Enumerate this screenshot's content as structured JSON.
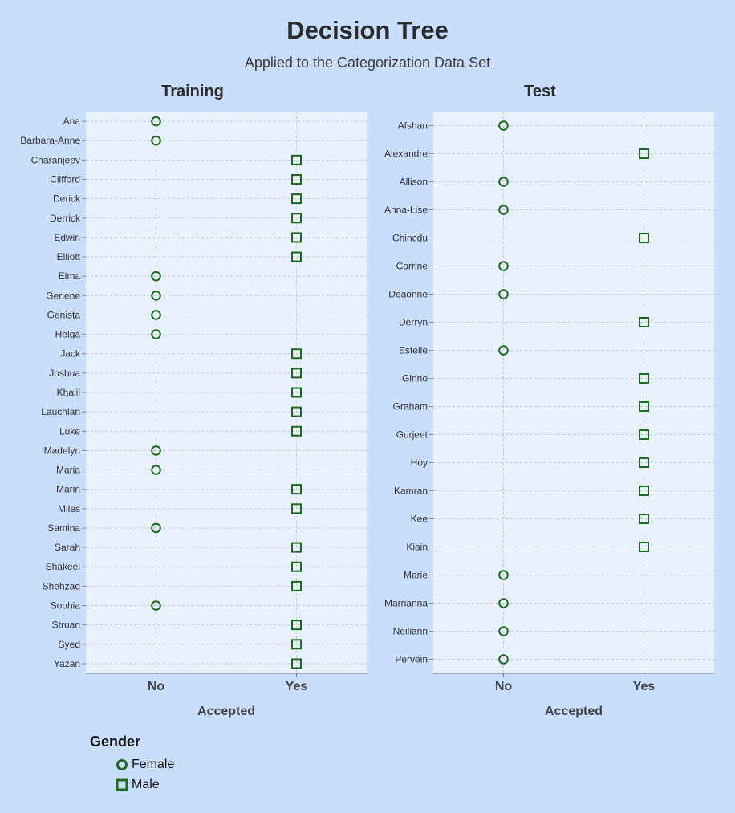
{
  "title": "Decision Tree",
  "subtitle": "Applied to the Categorization Data Set",
  "legend": {
    "title": "Gender",
    "items": [
      {
        "label": "Female",
        "symbol": "circle"
      },
      {
        "label": "Male",
        "symbol": "square"
      }
    ]
  },
  "colors": {
    "background": "#c9ddfc",
    "plot_background": "#e8f1fd",
    "marker": "#1a6b1a"
  },
  "chart_data": [
    {
      "type": "scatter",
      "title": "Training",
      "xlabel": "Accepted",
      "ylabel": "",
      "x_categories": [
        "No",
        "Yes"
      ],
      "grid": true,
      "points": [
        {
          "name": "Ana",
          "accepted": "No",
          "gender": "Female"
        },
        {
          "name": "Barbara-Anne",
          "accepted": "No",
          "gender": "Female"
        },
        {
          "name": "Charanjeev",
          "accepted": "Yes",
          "gender": "Male"
        },
        {
          "name": "Clifford",
          "accepted": "Yes",
          "gender": "Male"
        },
        {
          "name": "Derick",
          "accepted": "Yes",
          "gender": "Male"
        },
        {
          "name": "Derrick",
          "accepted": "Yes",
          "gender": "Male"
        },
        {
          "name": "Edwin",
          "accepted": "Yes",
          "gender": "Male"
        },
        {
          "name": "Elliott",
          "accepted": "Yes",
          "gender": "Male"
        },
        {
          "name": "Elma",
          "accepted": "No",
          "gender": "Female"
        },
        {
          "name": "Genene",
          "accepted": "No",
          "gender": "Female"
        },
        {
          "name": "Genista",
          "accepted": "No",
          "gender": "Female"
        },
        {
          "name": "Helga",
          "accepted": "No",
          "gender": "Female"
        },
        {
          "name": "Jack",
          "accepted": "Yes",
          "gender": "Male"
        },
        {
          "name": "Joshua",
          "accepted": "Yes",
          "gender": "Male"
        },
        {
          "name": "Khalil",
          "accepted": "Yes",
          "gender": "Male"
        },
        {
          "name": "Lauchlan",
          "accepted": "Yes",
          "gender": "Male"
        },
        {
          "name": "Luke",
          "accepted": "Yes",
          "gender": "Male"
        },
        {
          "name": "Madelyn",
          "accepted": "No",
          "gender": "Female"
        },
        {
          "name": "Maria",
          "accepted": "No",
          "gender": "Female"
        },
        {
          "name": "Marin",
          "accepted": "Yes",
          "gender": "Male"
        },
        {
          "name": "Miles",
          "accepted": "Yes",
          "gender": "Male"
        },
        {
          "name": "Samina",
          "accepted": "No",
          "gender": "Female"
        },
        {
          "name": "Sarah",
          "accepted": "Yes",
          "gender": "Male"
        },
        {
          "name": "Shakeel",
          "accepted": "Yes",
          "gender": "Male"
        },
        {
          "name": "Shehzad",
          "accepted": "Yes",
          "gender": "Male"
        },
        {
          "name": "Sophia",
          "accepted": "No",
          "gender": "Female"
        },
        {
          "name": "Struan",
          "accepted": "Yes",
          "gender": "Male"
        },
        {
          "name": "Syed",
          "accepted": "Yes",
          "gender": "Male"
        },
        {
          "name": "Yazan",
          "accepted": "Yes",
          "gender": "Male"
        }
      ]
    },
    {
      "type": "scatter",
      "title": "Test",
      "xlabel": "Accepted",
      "ylabel": "",
      "x_categories": [
        "No",
        "Yes"
      ],
      "grid": true,
      "points": [
        {
          "name": "Afshan",
          "accepted": "No",
          "gender": "Female"
        },
        {
          "name": "Alexandre",
          "accepted": "Yes",
          "gender": "Male"
        },
        {
          "name": "Allison",
          "accepted": "No",
          "gender": "Female"
        },
        {
          "name": "Anna-Lise",
          "accepted": "No",
          "gender": "Female"
        },
        {
          "name": "Chincdu",
          "accepted": "Yes",
          "gender": "Male"
        },
        {
          "name": "Corrine",
          "accepted": "No",
          "gender": "Female"
        },
        {
          "name": "Deaonne",
          "accepted": "No",
          "gender": "Female"
        },
        {
          "name": "Derryn",
          "accepted": "Yes",
          "gender": "Male"
        },
        {
          "name": "Estelle",
          "accepted": "No",
          "gender": "Female"
        },
        {
          "name": "Ginno",
          "accepted": "Yes",
          "gender": "Male"
        },
        {
          "name": "Graham",
          "accepted": "Yes",
          "gender": "Male"
        },
        {
          "name": "Gurjeet",
          "accepted": "Yes",
          "gender": "Male"
        },
        {
          "name": "Hoy",
          "accepted": "Yes",
          "gender": "Male"
        },
        {
          "name": "Kamran",
          "accepted": "Yes",
          "gender": "Male"
        },
        {
          "name": "Kee",
          "accepted": "Yes",
          "gender": "Male"
        },
        {
          "name": "Kiain",
          "accepted": "Yes",
          "gender": "Male"
        },
        {
          "name": "Marie",
          "accepted": "No",
          "gender": "Female"
        },
        {
          "name": "Marrianna",
          "accepted": "No",
          "gender": "Female"
        },
        {
          "name": "Neiliann",
          "accepted": "No",
          "gender": "Female"
        },
        {
          "name": "Pervein",
          "accepted": "No",
          "gender": "Female"
        }
      ]
    }
  ]
}
